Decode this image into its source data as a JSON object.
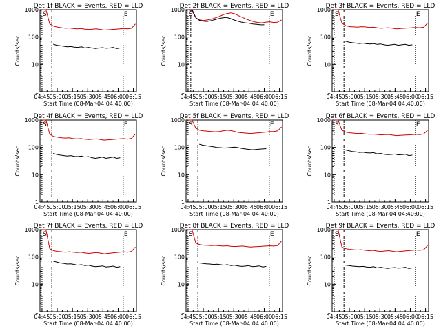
{
  "chart_data": [
    {
      "type": "line",
      "title": "Det 1f BLACK = Events, RED = LLD",
      "xlabel": "Start Time (08-Mar-04 04:40:00)",
      "ylabel": "Counts/sec",
      "x_ticks": [
        "04:45",
        "05:00",
        "05:15",
        "05:30",
        "05:45",
        "06:00",
        "06:15"
      ],
      "y_ticks": [
        "1",
        "10",
        "100",
        "1000"
      ],
      "ylim": [
        1,
        1000
      ],
      "yscale": "log",
      "markers": [
        {
          "label": "S",
          "time": "04:45"
        },
        {
          "label": "E",
          "time": "06:05"
        }
      ],
      "series": [
        {
          "color": "#cc0000",
          "t_start": "04:45",
          "t_end": "06:17",
          "values": [
            1000,
            1000,
            300,
            250,
            230,
            220,
            210,
            215,
            205,
            200,
            205,
            195,
            190,
            195,
            200,
            190,
            180,
            185,
            190,
            195,
            200,
            205,
            200,
            210,
            300
          ]
        },
        {
          "color": "#000000",
          "t_start": "04:56",
          "t_end": "06:02",
          "values": [
            55,
            50,
            48,
            46,
            44,
            45,
            43,
            42,
            44,
            40,
            42,
            40,
            38,
            40,
            41,
            39,
            40,
            42,
            38,
            40
          ]
        }
      ]
    },
    {
      "type": "line",
      "title": "Det 2f BLACK = Events, RED = LLD",
      "xlabel": "Start Time (08-Mar-04 04:40:00)",
      "ylabel": "Counts/sec",
      "x_ticks": [
        "04:45",
        "05:00",
        "05:15",
        "05:30",
        "05:45",
        "06:00",
        "06:15"
      ],
      "y_ticks": [
        "1",
        "10",
        "100",
        "1000"
      ],
      "ylim": [
        1,
        1000
      ],
      "yscale": "log",
      "markers": [
        {
          "label": "S",
          "time": "04:45"
        },
        {
          "label": "E",
          "time": "06:05"
        }
      ],
      "series": [
        {
          "color": "#cc0000",
          "t_start": "04:45",
          "t_end": "06:17",
          "values": [
            1000,
            900,
            500,
            420,
            400,
            420,
            450,
            500,
            560,
            650,
            720,
            760,
            700,
            600,
            520,
            450,
            400,
            360,
            340,
            330,
            350,
            360,
            340,
            350,
            420
          ]
        },
        {
          "color": "#000000",
          "t_start": "04:49",
          "t_end": "06:00",
          "values": [
            1000,
            500,
            400,
            380,
            370,
            400,
            430,
            470,
            500,
            520,
            480,
            420,
            380,
            350,
            330,
            320,
            300,
            290,
            280,
            280
          ]
        }
      ]
    },
    {
      "type": "line",
      "title": "Det 3f BLACK = Events, RED = LLD",
      "xlabel": "Start Time (08-Mar-04 04:40:00)",
      "ylabel": "Counts/sec",
      "x_ticks": [
        "04:45",
        "05:00",
        "05:15",
        "05:30",
        "05:45",
        "06:00",
        "06:15"
      ],
      "y_ticks": [
        "1",
        "10",
        "100",
        "1000"
      ],
      "ylim": [
        1,
        1000
      ],
      "yscale": "log",
      "markers": [
        {
          "label": "S",
          "time": "04:45"
        },
        {
          "label": "E",
          "time": "06:05"
        }
      ],
      "series": [
        {
          "color": "#cc0000",
          "t_start": "04:45",
          "t_end": "06:17",
          "values": [
            1000,
            1000,
            320,
            260,
            240,
            235,
            230,
            240,
            235,
            225,
            230,
            220,
            210,
            215,
            220,
            210,
            200,
            205,
            210,
            215,
            220,
            225,
            220,
            230,
            320
          ]
        },
        {
          "color": "#000000",
          "t_start": "04:56",
          "t_end": "06:02",
          "values": [
            70,
            65,
            62,
            60,
            58,
            60,
            57,
            56,
            58,
            54,
            56,
            52,
            50,
            52,
            54,
            50,
            52,
            54,
            50,
            52
          ]
        }
      ]
    },
    {
      "type": "line",
      "title": "Det 4f BLACK = Events, RED = LLD",
      "xlabel": "Start Time (08-Mar-04 04:40:00)",
      "ylabel": "Counts/sec",
      "x_ticks": [
        "04:45",
        "05:00",
        "05:15",
        "05:30",
        "05:45",
        "06:00",
        "06:15"
      ],
      "y_ticks": [
        "1",
        "10",
        "100",
        "1000"
      ],
      "ylim": [
        1,
        1000
      ],
      "yscale": "log",
      "markers": [
        {
          "label": "S",
          "time": "04:45"
        },
        {
          "label": "E",
          "time": "06:05"
        }
      ],
      "series": [
        {
          "color": "#cc0000",
          "t_start": "04:45",
          "t_end": "06:17",
          "values": [
            1000,
            1000,
            300,
            250,
            235,
            225,
            220,
            225,
            210,
            205,
            210,
            200,
            195,
            200,
            205,
            195,
            185,
            190,
            195,
            200,
            205,
            210,
            200,
            215,
            310
          ]
        },
        {
          "color": "#000000",
          "t_start": "04:56",
          "t_end": "06:02",
          "values": [
            60,
            55,
            52,
            50,
            48,
            50,
            47,
            46,
            48,
            44,
            46,
            42,
            40,
            42,
            44,
            40,
            42,
            44,
            40,
            42
          ]
        }
      ]
    },
    {
      "type": "line",
      "title": "Det 5f BLACK = Events, RED = LLD",
      "xlabel": "Start Time (08-Mar-04 04:40:00)",
      "ylabel": "Counts/sec",
      "x_ticks": [
        "04:45",
        "05:00",
        "05:15",
        "05:30",
        "05:45",
        "06:00",
        "06:15"
      ],
      "y_ticks": [
        "1",
        "10",
        "100",
        "1000"
      ],
      "ylim": [
        1,
        1000
      ],
      "yscale": "log",
      "markers": [
        {
          "label": "S",
          "time": "04:45"
        },
        {
          "label": "E",
          "time": "06:05"
        }
      ],
      "series": [
        {
          "color": "#cc0000",
          "t_start": "04:45",
          "t_end": "06:17",
          "values": [
            1000,
            1000,
            500,
            420,
            400,
            390,
            380,
            370,
            380,
            400,
            420,
            410,
            380,
            350,
            340,
            330,
            320,
            330,
            340,
            350,
            360,
            380,
            380,
            400,
            560
          ]
        },
        {
          "color": "#000000",
          "t_start": "04:56",
          "t_end": "06:02",
          "values": [
            130,
            120,
            115,
            110,
            105,
            100,
            98,
            95,
            97,
            100,
            102,
            98,
            92,
            88,
            85,
            82,
            84,
            86,
            88,
            90
          ]
        }
      ]
    },
    {
      "type": "line",
      "title": "Det 6f BLACK = Events, RED = LLD",
      "xlabel": "Start Time (08-Mar-04 04:40:00)",
      "ylabel": "Counts/sec",
      "x_ticks": [
        "04:45",
        "05:00",
        "05:15",
        "05:30",
        "05:45",
        "06:00",
        "06:15"
      ],
      "y_ticks": [
        "1",
        "10",
        "100",
        "1000"
      ],
      "ylim": [
        1,
        1000
      ],
      "yscale": "log",
      "markers": [
        {
          "label": "S",
          "time": "04:45"
        },
        {
          "label": "E",
          "time": "06:05"
        }
      ],
      "series": [
        {
          "color": "#cc0000",
          "t_start": "04:45",
          "t_end": "06:17",
          "values": [
            1000,
            1000,
            420,
            360,
            340,
            330,
            320,
            325,
            310,
            300,
            305,
            295,
            285,
            290,
            295,
            280,
            270,
            275,
            280,
            285,
            290,
            300,
            290,
            310,
            420
          ]
        },
        {
          "color": "#000000",
          "t_start": "04:56",
          "t_end": "06:02",
          "values": [
            80,
            75,
            70,
            68,
            65,
            66,
            63,
            62,
            64,
            58,
            60,
            56,
            54,
            55,
            57,
            53,
            54,
            56,
            50,
            52
          ]
        }
      ]
    },
    {
      "type": "line",
      "title": "Det 7f BLACK = Events, RED = LLD",
      "xlabel": "Start Time (08-Mar-04 04:40:00)",
      "ylabel": "Counts/sec",
      "x_ticks": [
        "04:45",
        "05:00",
        "05:15",
        "05:30",
        "05:45",
        "06:00",
        "06:15"
      ],
      "y_ticks": [
        "1",
        "10",
        "100",
        "1000"
      ],
      "ylim": [
        1,
        1000
      ],
      "yscale": "log",
      "markers": [
        {
          "label": "S",
          "time": "04:45"
        },
        {
          "label": "E",
          "time": "06:05"
        }
      ],
      "series": [
        {
          "color": "#cc0000",
          "t_start": "04:45",
          "t_end": "06:17",
          "values": [
            1000,
            1000,
            200,
            170,
            160,
            155,
            150,
            155,
            150,
            145,
            150,
            140,
            135,
            140,
            145,
            138,
            130,
            135,
            140,
            145,
            150,
            155,
            150,
            160,
            230
          ]
        },
        {
          "color": "#000000",
          "t_start": "04:56",
          "t_end": "06:02",
          "values": [
            70,
            65,
            60,
            58,
            55,
            56,
            53,
            50,
            52,
            48,
            50,
            46,
            44,
            45,
            47,
            43,
            44,
            46,
            42,
            44
          ]
        }
      ]
    },
    {
      "type": "line",
      "title": "Det 8f BLACK = Events, RED = LLD",
      "xlabel": "Start Time (08-Mar-04 04:40:00)",
      "ylabel": "Counts/sec",
      "x_ticks": [
        "04:45",
        "05:00",
        "05:15",
        "05:30",
        "05:45",
        "06:00",
        "06:15"
      ],
      "y_ticks": [
        "1",
        "10",
        "100",
        "1000"
      ],
      "ylim": [
        1,
        1000
      ],
      "yscale": "log",
      "markers": [
        {
          "label": "S",
          "time": "04:45"
        },
        {
          "label": "E",
          "time": "06:05"
        }
      ],
      "series": [
        {
          "color": "#cc0000",
          "t_start": "04:45",
          "t_end": "06:17",
          "values": [
            1000,
            1000,
            320,
            280,
            270,
            265,
            260,
            265,
            255,
            250,
            255,
            245,
            240,
            245,
            250,
            240,
            230,
            235,
            240,
            245,
            250,
            255,
            250,
            260,
            380
          ]
        },
        {
          "color": "#000000",
          "t_start": "04:56",
          "t_end": "06:02",
          "values": [
            60,
            58,
            56,
            55,
            53,
            54,
            52,
            50,
            52,
            48,
            50,
            47,
            45,
            46,
            48,
            44,
            45,
            47,
            43,
            45
          ]
        }
      ]
    },
    {
      "type": "line",
      "title": "Det 9f BLACK = Events, RED = LLD",
      "xlabel": "Start Time (08-Mar-04 04:40:00)",
      "ylabel": "Counts/sec",
      "x_ticks": [
        "04:45",
        "05:00",
        "05:15",
        "05:30",
        "05:45",
        "06:00",
        "06:15"
      ],
      "y_ticks": [
        "1",
        "10",
        "100",
        "1000"
      ],
      "ylim": [
        1,
        1000
      ],
      "yscale": "log",
      "markers": [
        {
          "label": "S",
          "time": "04:45"
        },
        {
          "label": "E",
          "time": "06:05"
        }
      ],
      "series": [
        {
          "color": "#cc0000",
          "t_start": "04:45",
          "t_end": "06:17",
          "values": [
            1000,
            1000,
            230,
            200,
            190,
            185,
            180,
            185,
            175,
            170,
            175,
            165,
            160,
            165,
            170,
            162,
            155,
            160,
            165,
            170,
            175,
            180,
            175,
            185,
            260
          ]
        },
        {
          "color": "#000000",
          "t_start": "04:56",
          "t_end": "06:02",
          "values": [
            50,
            48,
            46,
            45,
            44,
            45,
            43,
            42,
            44,
            40,
            42,
            40,
            38,
            40,
            41,
            39,
            40,
            42,
            38,
            40
          ]
        }
      ]
    }
  ]
}
